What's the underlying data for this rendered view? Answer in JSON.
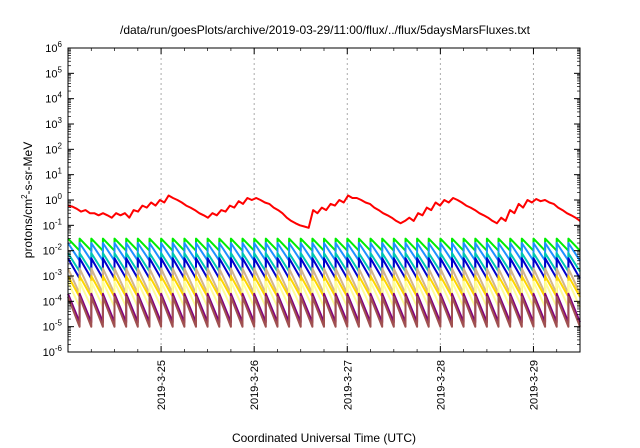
{
  "chart_data": {
    "type": "line",
    "title": "/data/run/goesPlots/archive/2019-03-29/11:00/flux/../flux/5daysMarsFluxes.txt",
    "xlabel": "Coordinated Universal Time (UTC)",
    "ylabel_main": "protons/cm",
    "ylabel_sup": "2",
    "ylabel_rest": "-s-sr-MeV",
    "yscale": "log",
    "ylim_exp": [
      -6,
      6
    ],
    "y_tick_exponents": [
      -6,
      -5,
      -4,
      -3,
      -2,
      -1,
      0,
      1,
      2,
      3,
      4,
      5,
      6
    ],
    "y_tick_base": "10",
    "xlim_days": [
      0,
      5.5
    ],
    "x_ticks": [
      {
        "label": "2019-3-25",
        "day": 1
      },
      {
        "label": "2019-3-26",
        "day": 2
      },
      {
        "label": "2019-3-27",
        "day": 3
      },
      {
        "label": "2019-3-28",
        "day": 4
      },
      {
        "label": "2019-3-29",
        "day": 5
      }
    ],
    "grid": true,
    "period_days": 0.125,
    "series": [
      {
        "color": "#ff0000",
        "values": [
          0.6,
          0.55,
          0.45,
          0.35,
          0.4,
          0.3,
          0.3,
          0.25,
          0.3,
          0.25,
          0.2,
          0.3,
          0.25,
          0.3,
          0.2,
          0.4,
          0.35,
          0.6,
          0.5,
          0.8,
          0.6,
          1.0,
          0.8,
          1.5,
          1.2,
          1.0,
          0.8,
          0.6,
          0.5,
          0.4,
          0.3,
          0.25,
          0.2,
          0.3,
          0.25,
          0.4,
          0.35,
          0.6,
          0.5,
          0.9,
          0.7,
          1.2,
          1.0,
          1.2,
          1.0,
          0.8,
          0.7,
          0.5,
          0.4,
          0.3,
          0.2,
          0.15,
          0.12,
          0.1,
          0.09,
          0.08,
          0.4,
          0.3,
          0.5,
          0.4,
          0.7,
          0.6,
          1.0,
          0.8,
          1.5,
          1.2,
          1.2,
          1.0,
          0.8,
          0.7,
          0.5,
          0.4,
          0.3,
          0.25,
          0.2,
          0.15,
          0.12,
          0.15,
          0.2,
          0.15,
          0.3,
          0.25,
          0.5,
          0.4,
          0.8,
          0.6,
          1.0,
          0.8,
          1.2,
          1.0,
          0.8,
          0.6,
          0.5,
          0.4,
          0.3,
          0.25,
          0.2,
          0.15,
          0.12,
          0.2,
          0.15,
          0.4,
          0.3,
          0.7,
          0.5,
          1.0,
          0.8,
          1.1,
          0.9,
          1.0,
          0.8,
          0.7,
          0.5,
          0.4,
          0.3,
          0.25,
          0.2,
          0.15
        ]
      },
      {
        "color": "#00ee00",
        "min": 0.01,
        "max": 0.03
      },
      {
        "color": "#1e90ff",
        "min": 0.004,
        "max": 0.02
      },
      {
        "color": "#00c8b4",
        "min": 0.0015,
        "max": 0.008
      },
      {
        "color": "#0000cd",
        "min": 0.0008,
        "max": 0.005
      },
      {
        "color": "#d2b48c",
        "min": 0.0002,
        "max": 0.002
      },
      {
        "color": "#ffd700",
        "min": 0.00015,
        "max": 0.001
      },
      {
        "color": "#ffff99",
        "min": 6e-05,
        "max": 0.0006
      },
      {
        "color": "#800080",
        "min": 1.5e-05,
        "max": 0.0002
      },
      {
        "color": "#a05050",
        "min": 1e-05,
        "max": 0.00015
      }
    ]
  }
}
